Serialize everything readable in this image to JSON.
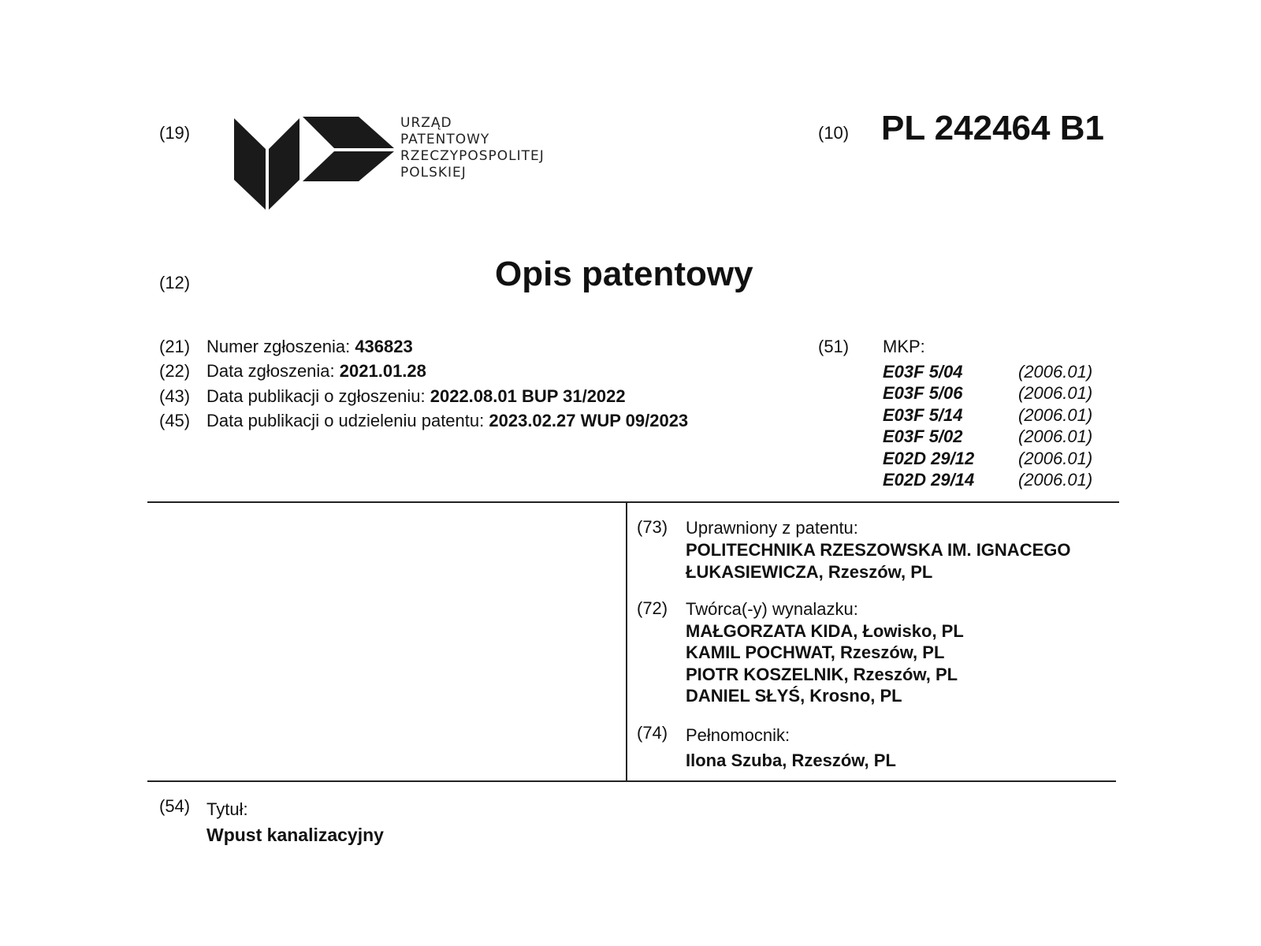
{
  "header": {
    "code19": "(19)",
    "logo": {
      "lines": [
        "URZĄD",
        "PATENTOWY",
        "RZECZYPOSPOLITEJ",
        "POLSKIEJ"
      ]
    },
    "code10": "(10)",
    "patent_number": "PL 242464 B1",
    "code12": "(12)",
    "doc_title": "Opis patentowy"
  },
  "biblio": [
    {
      "code": "(21)",
      "label": "Numer zgłoszenia:",
      "value": "436823"
    },
    {
      "code": "(22)",
      "label": "Data zgłoszenia:",
      "value": "2021.01.28"
    },
    {
      "code": "(43)",
      "label": "Data publikacji o zgłoszeniu:",
      "value": "2022.08.01 BUP 31/2022"
    },
    {
      "code": "(45)",
      "label": "Data publikacji o udzieleniu patentu:",
      "value": "2023.02.27 WUP 09/2023"
    }
  ],
  "mkp": {
    "code": "(51)",
    "label": "MKP:",
    "items": [
      {
        "cls": "E03F 5/04",
        "ver": "(2006.01)"
      },
      {
        "cls": "E03F 5/06",
        "ver": "(2006.01)"
      },
      {
        "cls": "E03F 5/14",
        "ver": "(2006.01)"
      },
      {
        "cls": "E03F 5/02",
        "ver": "(2006.01)"
      },
      {
        "cls": "E02D 29/12",
        "ver": "(2006.01)"
      },
      {
        "cls": "E02D 29/14",
        "ver": "(2006.01)"
      }
    ]
  },
  "owner": {
    "code": "(73)",
    "label": "Uprawniony z patentu:",
    "lines": [
      "POLITECHNIKA RZESZOWSKA IM. IGNACEGO",
      "ŁUKASIEWICZA, Rzeszów, PL"
    ]
  },
  "inventors": {
    "code": "(72)",
    "label": "Twórca(-y) wynalazku:",
    "lines": [
      "MAŁGORZATA KIDA, Łowisko, PL",
      "KAMIL POCHWAT, Rzeszów, PL",
      "PIOTR KOSZELNIK, Rzeszów, PL",
      "DANIEL SŁYŚ, Krosno, PL"
    ]
  },
  "attorney": {
    "code": "(74)",
    "label": "Pełnomocnik:",
    "lines": [
      "Ilona Szuba, Rzeszów, PL"
    ]
  },
  "title": {
    "code": "(54)",
    "label": "Tytuł:",
    "value": "Wpust kanalizacyjny"
  }
}
